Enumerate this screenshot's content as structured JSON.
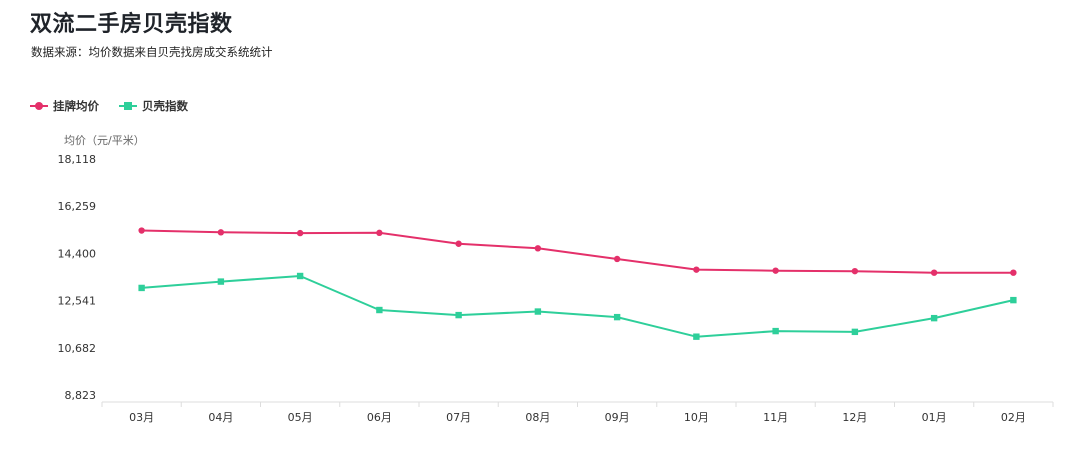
{
  "title": "双流二手房贝壳指数",
  "subtitle": "数据来源：均价数据来自贝壳找房成交系统统计",
  "legend": {
    "series_1": "挂牌均价",
    "series_2": "贝壳指数"
  },
  "colors": {
    "series_1": "#e4306a",
    "series_2": "#2ecf9a",
    "axis": "#dddddd",
    "tick_text": "#333333",
    "unit_text": "#666666"
  },
  "chart_data": {
    "type": "line",
    "title": "",
    "ylabel": "均价（元/平米）",
    "xlabel": "",
    "categories": [
      "03月",
      "04月",
      "05月",
      "06月",
      "07月",
      "08月",
      "09月",
      "10月",
      "11月",
      "12月",
      "01月",
      "02月"
    ],
    "yticks": [
      "8,823",
      "10,682",
      "12,541",
      "14,400",
      "16,259",
      "18,118"
    ],
    "ylim": [
      8823,
      18118
    ],
    "grid": false,
    "legend_position": "top-left",
    "series": [
      {
        "name": "挂牌均价",
        "marker": "circle",
        "values": [
          15300,
          15230,
          15200,
          15210,
          14780,
          14600,
          14180,
          13760,
          13720,
          13700,
          13640,
          13640
        ]
      },
      {
        "name": "贝壳指数",
        "marker": "square",
        "values": [
          13040,
          13290,
          13510,
          12170,
          11970,
          12110,
          11890,
          11120,
          11340,
          11310,
          11850,
          12560
        ]
      }
    ]
  }
}
